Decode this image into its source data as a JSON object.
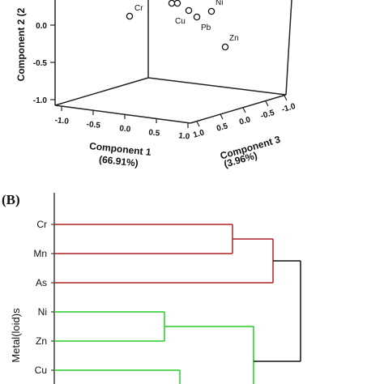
{
  "chart_data": [
    {
      "type": "scatter",
      "panel_label": "",
      "xlabel": "Component 1",
      "xlabel_pct": "(66.91%)",
      "ylabel": "Component 2 (2",
      "zlabel": "Component 3",
      "zlabel_pct": "(3.96%)",
      "y_ticks": [
        "0.0",
        "-0.5",
        "-1.0"
      ],
      "x_ticks": [
        "-1.0",
        "-0.5",
        "0.0",
        "0.5",
        "1.0"
      ],
      "z_ticks": [
        "1.0",
        "0.5",
        "0.0",
        "-0.5",
        "-1.0"
      ],
      "points": [
        {
          "label": "Cr"
        },
        {
          "label": ""
        },
        {
          "label": ""
        },
        {
          "label": "Cu"
        },
        {
          "label": "Pb"
        },
        {
          "label": "Ni"
        },
        {
          "label": "Zn"
        }
      ]
    },
    {
      "type": "dendrogram",
      "panel_label": "(B)",
      "ylabel": "Metal(loid)s",
      "leaves": [
        "Cr",
        "Mn",
        "As",
        "Ni",
        "Zn",
        "Cu"
      ],
      "clusters": [
        {
          "color": "#b22222",
          "members": [
            "Cr",
            "Mn",
            "As"
          ]
        },
        {
          "color": "#22cc22",
          "members": [
            "Ni",
            "Zn",
            "Cu"
          ]
        }
      ]
    }
  ]
}
